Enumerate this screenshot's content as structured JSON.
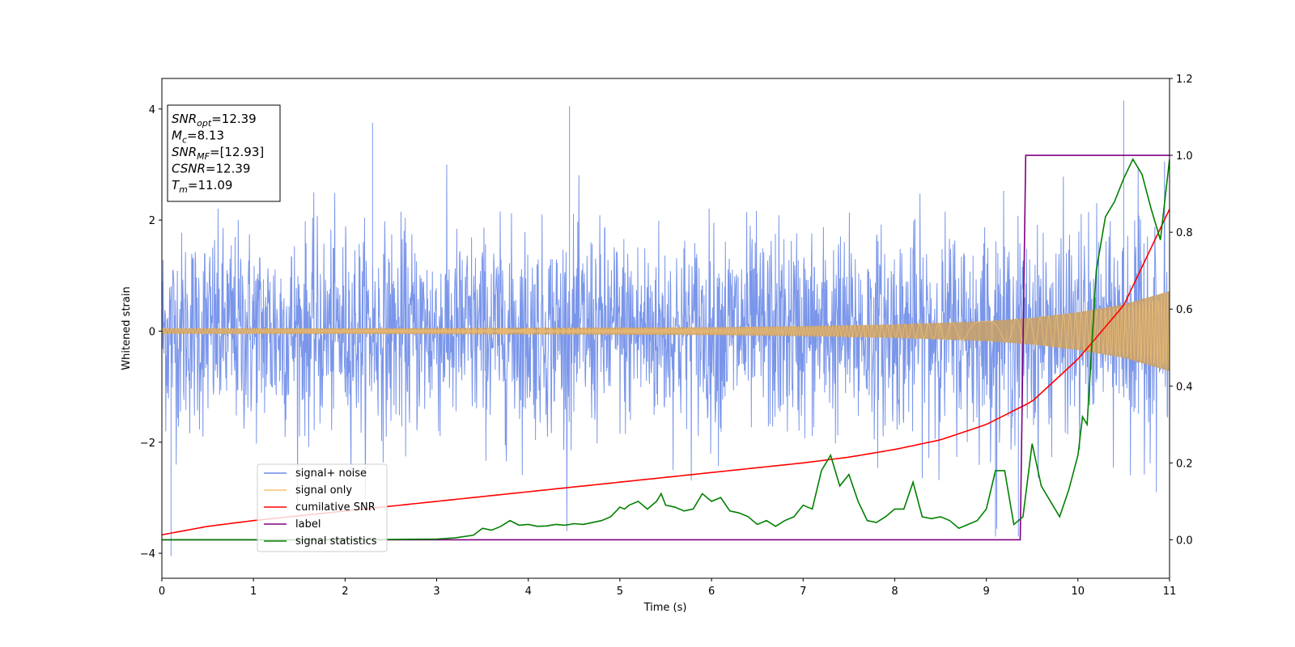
{
  "chart_data": {
    "type": "line",
    "title": "",
    "xlabel": "Time (s)",
    "ylabel": "Whitened strain",
    "xlim": [
      0,
      11
    ],
    "ylim_left": [
      -4.45,
      4.55
    ],
    "ylim_right": [
      -0.1,
      1.2
    ],
    "x_ticks": [
      "0",
      "1",
      "2",
      "3",
      "4",
      "5",
      "6",
      "7",
      "8",
      "9",
      "10",
      "11"
    ],
    "y_left_ticks": [
      {
        "value": -4,
        "label": "−4"
      },
      {
        "value": -2,
        "label": "−2"
      },
      {
        "value": 0,
        "label": "0"
      },
      {
        "value": 2,
        "label": "2"
      },
      {
        "value": 4,
        "label": "4"
      }
    ],
    "y_right_ticks": [
      {
        "value": 0.0,
        "label": "0.0"
      },
      {
        "value": 0.2,
        "label": "0.2"
      },
      {
        "value": 0.4,
        "label": "0.4"
      },
      {
        "value": 0.6,
        "label": "0.6"
      },
      {
        "value": 0.8,
        "label": "0.8"
      },
      {
        "value": 1.0,
        "label": "1.0"
      },
      {
        "value": 1.2,
        "label": "1.2"
      }
    ],
    "grid": false,
    "legend_position": "lower-left",
    "series": [
      {
        "name": "signal+ noise",
        "axis": "left",
        "color": "#6b8be8",
        "description_values": {
          "noise_sigma": 0.9,
          "notable_peaks": [
            [
              0.1,
              -4.05
            ],
            [
              2.3,
              3.75
            ],
            [
              4.45,
              4.05
            ],
            [
              10.5,
              4.15
            ],
            [
              9.1,
              -3.7
            ],
            [
              9.35,
              -3.7
            ]
          ]
        }
      },
      {
        "name": "signal only",
        "axis": "left",
        "color": "#f5c070",
        "envelope": {
          "x": [
            0,
            2,
            4,
            6,
            7,
            8,
            9,
            9.5,
            10,
            10.5,
            11
          ],
          "amplitude": [
            0.05,
            0.05,
            0.06,
            0.07,
            0.09,
            0.12,
            0.18,
            0.24,
            0.34,
            0.48,
            0.72
          ]
        }
      },
      {
        "name": "cumilative SNR",
        "axis": "right",
        "color": "#ff0000",
        "x": [
          0,
          0.5,
          1,
          2,
          3,
          4,
          5,
          6,
          7,
          7.5,
          8,
          8.5,
          9,
          9.5,
          10,
          10.5,
          11
        ],
        "values": [
          0.013,
          0.035,
          0.05,
          0.075,
          0.1,
          0.125,
          0.15,
          0.175,
          0.2,
          0.215,
          0.235,
          0.26,
          0.3,
          0.36,
          0.47,
          0.61,
          0.86
        ]
      },
      {
        "name": "label",
        "axis": "right",
        "color": "#800080",
        "x": [
          0,
          9.37,
          9.43,
          11
        ],
        "values": [
          0.0,
          0.0,
          1.0,
          1.0
        ]
      },
      {
        "name": "signal statistics",
        "axis": "right",
        "color": "#008000",
        "x": [
          0,
          1,
          2,
          3,
          3.2,
          3.4,
          3.5,
          3.6,
          3.7,
          3.8,
          3.9,
          4.0,
          4.1,
          4.2,
          4.3,
          4.4,
          4.5,
          4.6,
          4.7,
          4.8,
          4.9,
          5.0,
          5.05,
          5.1,
          5.2,
          5.3,
          5.4,
          5.45,
          5.5,
          5.6,
          5.7,
          5.8,
          5.9,
          6.0,
          6.1,
          6.2,
          6.3,
          6.4,
          6.5,
          6.6,
          6.7,
          6.8,
          6.9,
          7.0,
          7.1,
          7.2,
          7.3,
          7.4,
          7.5,
          7.6,
          7.7,
          7.8,
          7.9,
          8.0,
          8.1,
          8.2,
          8.3,
          8.4,
          8.5,
          8.6,
          8.7,
          8.8,
          8.9,
          9.0,
          9.1,
          9.2,
          9.3,
          9.4,
          9.5,
          9.6,
          9.7,
          9.8,
          9.9,
          10.0,
          10.05,
          10.1,
          10.2,
          10.3,
          10.4,
          10.5,
          10.6,
          10.7,
          10.8,
          10.9,
          11.0
        ],
        "values": [
          0.0,
          0.0,
          0.0,
          0.002,
          0.005,
          0.012,
          0.03,
          0.025,
          0.035,
          0.05,
          0.038,
          0.04,
          0.035,
          0.036,
          0.04,
          0.038,
          0.042,
          0.04,
          0.045,
          0.05,
          0.06,
          0.085,
          0.08,
          0.09,
          0.1,
          0.08,
          0.1,
          0.12,
          0.09,
          0.085,
          0.075,
          0.08,
          0.12,
          0.1,
          0.11,
          0.075,
          0.07,
          0.06,
          0.04,
          0.05,
          0.035,
          0.05,
          0.06,
          0.09,
          0.08,
          0.18,
          0.22,
          0.14,
          0.17,
          0.1,
          0.05,
          0.045,
          0.06,
          0.08,
          0.08,
          0.15,
          0.06,
          0.055,
          0.06,
          0.05,
          0.03,
          0.04,
          0.05,
          0.08,
          0.18,
          0.18,
          0.04,
          0.06,
          0.25,
          0.14,
          0.1,
          0.06,
          0.13,
          0.22,
          0.32,
          0.3,
          0.7,
          0.84,
          0.88,
          0.94,
          0.99,
          0.95,
          0.86,
          0.78,
          0.99
        ]
      }
    ]
  },
  "info_box": {
    "lines": [
      {
        "main": "SNR",
        "sub": "opt",
        "rest": "=12.39"
      },
      {
        "main": "M",
        "sub": "c",
        "rest": "=8.13"
      },
      {
        "main": "SNR",
        "sub": "MF",
        "rest": "=[12.93]"
      },
      {
        "main": "CSNR",
        "sub": "",
        "rest": "=12.39"
      },
      {
        "main": "T",
        "sub": "m",
        "rest": "=11.09"
      }
    ]
  },
  "legend": {
    "entries": [
      {
        "label": "signal+ noise",
        "color": "#6b8be8"
      },
      {
        "label": "signal only",
        "color": "#f5c070"
      },
      {
        "label": "cumilative SNR",
        "color": "#ff0000"
      },
      {
        "label": "label",
        "color": "#800080"
      },
      {
        "label": "signal statistics",
        "color": "#008000"
      }
    ]
  }
}
